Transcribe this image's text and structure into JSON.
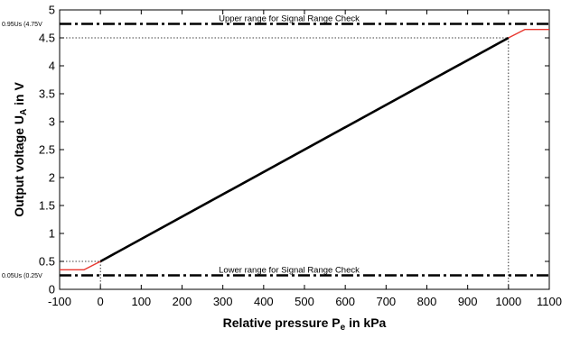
{
  "chart_data": {
    "type": "line",
    "xlabel": {
      "main": "Relative pressure P",
      "sub": "e",
      "tail": " in kPa"
    },
    "ylabel": {
      "main": "Output voltage U",
      "sub": "A",
      "tail": " in V"
    },
    "xlim": [
      -100,
      1100
    ],
    "ylim": [
      0,
      5
    ],
    "x_ticks": [
      "-100",
      "0",
      "100",
      "200",
      "300",
      "400",
      "500",
      "600",
      "700",
      "800",
      "900",
      "1000",
      "1100"
    ],
    "y_ticks": [
      "0",
      "0.5",
      "1",
      "1.5",
      "2",
      "2.5",
      "3",
      "3.5",
      "4",
      "4.5",
      "5"
    ],
    "grid": false,
    "series": [
      {
        "style": "solid-black",
        "color": "#000000",
        "x": [
          0,
          1000
        ],
        "y": [
          0.5,
          4.5
        ]
      },
      {
        "style": "solid-red",
        "color": "#e8372f",
        "x": [
          -100,
          -40,
          0
        ],
        "y": [
          0.35,
          0.35,
          0.5
        ]
      },
      {
        "style": "solid-red",
        "color": "#e8372f",
        "x": [
          1000,
          1040,
          1100
        ],
        "y": [
          4.5,
          4.65,
          4.65
        ]
      }
    ],
    "reference_lines": [
      {
        "y": 4.75,
        "label": "Upper range for Signal Range Check",
        "side_label": "0.95Us (4.75V"
      },
      {
        "y": 0.25,
        "label": "Lower range for Signal Range Check",
        "side_label": "0.05Us (0.25V"
      }
    ],
    "guides": [
      {
        "x": 0,
        "y": 0.5
      },
      {
        "x": 1000,
        "y": 4.5
      }
    ]
  }
}
